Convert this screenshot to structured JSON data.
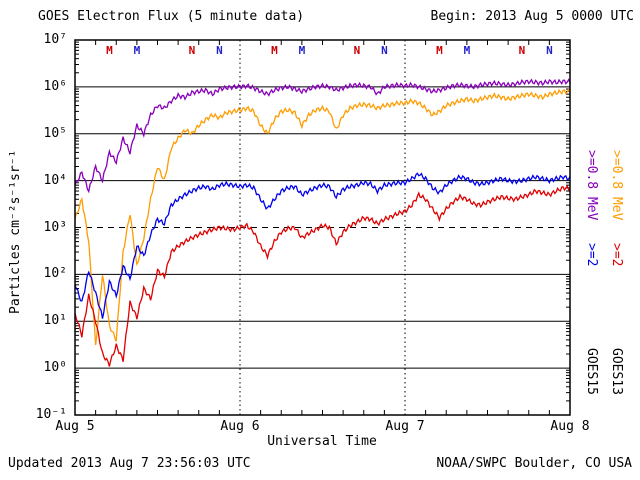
{
  "header": {
    "title": "GOES Electron Flux (5 minute data)",
    "begin_label": "Begin: 2013 Aug 5 0000 UTC"
  },
  "footer": {
    "updated": "Updated 2013 Aug  7 23:56:03 UTC",
    "credit": "NOAA/SWPC Boulder, CO USA"
  },
  "legend": {
    "goes15": {
      "label": "GOES15",
      "e08": {
        "label": ">=0.8 MeV",
        "color": "#8800bb"
      },
      "e2": {
        "label": ">=2",
        "color": "#0000ee"
      }
    },
    "goes13": {
      "label": "GOES13",
      "e08": {
        "label": ">=0.8 MeV",
        "color": "#ff9c00"
      },
      "e2": {
        "label": ">=2",
        "color": "#e00000"
      }
    }
  },
  "chart_data": {
    "type": "line",
    "title": "GOES Electron Flux (5 minute data)",
    "xlabel": "Universal Time",
    "ylabel": "Particles cm⁻²s⁻¹sr⁻¹",
    "x_unit": "hours since 2013 Aug 5 0000 UTC",
    "x_range": [
      0,
      72
    ],
    "x_step_hours": 1,
    "x_tick_labels": [
      {
        "hour": 0,
        "label": "Aug 5"
      },
      {
        "hour": 24,
        "label": "Aug 6"
      },
      {
        "hour": 48,
        "label": "Aug 7"
      },
      {
        "hour": 72,
        "label": "Aug 8"
      }
    ],
    "y_scale": "log",
    "y_exponent_range": [
      -1,
      7
    ],
    "y_tick_labels": [
      {
        "exp": 7,
        "label": "10⁷"
      },
      {
        "exp": 6,
        "label": "10⁶"
      },
      {
        "exp": 5,
        "label": "10⁵"
      },
      {
        "exp": 4,
        "label": "10⁴"
      },
      {
        "exp": 3,
        "label": "10³"
      },
      {
        "exp": 2,
        "label": "10²"
      },
      {
        "exp": 1,
        "label": "10¹"
      },
      {
        "exp": 0,
        "label": "10⁰"
      },
      {
        "exp": -1,
        "label": "10⁻¹"
      }
    ],
    "grid_exponents": [
      0,
      1,
      2,
      4,
      5,
      6
    ],
    "threshold": {
      "value": 1000,
      "style": "dashed"
    },
    "day_boundaries_hours": [
      24,
      48
    ],
    "legend_position": "right-margin",
    "satellite_markers": [
      {
        "hour": 5,
        "label": "M",
        "color": "#cc0000"
      },
      {
        "hour": 9,
        "label": "M",
        "color": "#2222cc"
      },
      {
        "hour": 17,
        "label": "N",
        "color": "#cc0000"
      },
      {
        "hour": 21,
        "label": "N",
        "color": "#2222cc"
      },
      {
        "hour": 29,
        "label": "M",
        "color": "#cc0000"
      },
      {
        "hour": 33,
        "label": "M",
        "color": "#2222cc"
      },
      {
        "hour": 41,
        "label": "N",
        "color": "#cc0000"
      },
      {
        "hour": 45,
        "label": "N",
        "color": "#2222cc"
      },
      {
        "hour": 53,
        "label": "M",
        "color": "#cc0000"
      },
      {
        "hour": 57,
        "label": "M",
        "color": "#2222cc"
      },
      {
        "hour": 65,
        "label": "N",
        "color": "#cc0000"
      },
      {
        "hour": 69,
        "label": "N",
        "color": "#2222cc"
      }
    ],
    "series": [
      {
        "name": "GOES13 >=0.8 MeV",
        "color": "#ff9c00",
        "values": [
          1500,
          4000,
          500,
          3,
          100,
          8,
          4,
          300,
          2000,
          150,
          600,
          4000,
          20000,
          10000,
          50000,
          80000,
          120000,
          100000,
          150000,
          200000,
          250000,
          220000,
          280000,
          300000,
          320000,
          350000,
          300000,
          150000,
          100000,
          200000,
          300000,
          320000,
          280000,
          150000,
          250000,
          320000,
          350000,
          300000,
          120000,
          250000,
          350000,
          400000,
          420000,
          400000,
          350000,
          400000,
          420000,
          450000,
          450000,
          500000,
          450000,
          350000,
          250000,
          300000,
          400000,
          450000,
          500000,
          550000,
          500000,
          550000,
          600000,
          650000,
          600000,
          550000,
          600000,
          650000,
          700000,
          650000,
          600000,
          700000,
          750000,
          800000,
          780000
        ]
      },
      {
        "name": "GOES13 >=2 MeV",
        "color": "#e00000",
        "values": [
          15,
          5,
          35,
          10,
          2,
          1.2,
          3,
          1.5,
          25,
          12,
          50,
          30,
          120,
          90,
          300,
          400,
          500,
          600,
          700,
          800,
          900,
          1000,
          950,
          900,
          1000,
          1100,
          800,
          400,
          250,
          500,
          800,
          950,
          1000,
          600,
          750,
          900,
          1100,
          1000,
          450,
          800,
          1100,
          1300,
          1600,
          1500,
          1200,
          1500,
          1700,
          2000,
          2200,
          3000,
          5000,
          4000,
          2500,
          1600,
          2500,
          3500,
          4500,
          4000,
          3200,
          3000,
          3500,
          4000,
          4500,
          4200,
          4000,
          4500,
          5000,
          6000,
          5500,
          5000,
          6000,
          7000,
          6800
        ]
      },
      {
        "name": "GOES15 >=2 MeV",
        "color": "#0000ee",
        "values": [
          60,
          25,
          120,
          40,
          12,
          70,
          35,
          150,
          80,
          400,
          250,
          700,
          1500,
          1200,
          3000,
          4000,
          5000,
          6000,
          7000,
          7500,
          6500,
          8000,
          8500,
          8000,
          7500,
          8000,
          7000,
          4000,
          2500,
          4000,
          6000,
          7000,
          7500,
          5000,
          6000,
          7000,
          8000,
          7500,
          4500,
          6500,
          7500,
          8000,
          9000,
          8500,
          6000,
          8000,
          8500,
          9000,
          9000,
          11000,
          14000,
          11000,
          7000,
          5500,
          8000,
          10000,
          12000,
          11000,
          9000,
          8500,
          9000,
          10000,
          11000,
          10000,
          9500,
          10000,
          11000,
          12000,
          11000,
          10000,
          11000,
          12000,
          11000
        ]
      },
      {
        "name": "GOES15 >=0.8 MeV",
        "color": "#8800bb",
        "values": [
          8000,
          15000,
          6000,
          20000,
          10000,
          40000,
          25000,
          80000,
          40000,
          150000,
          100000,
          250000,
          400000,
          350000,
          500000,
          650000,
          600000,
          750000,
          800000,
          850000,
          700000,
          900000,
          950000,
          1000000,
          1000000,
          1050000,
          950000,
          800000,
          700000,
          850000,
          950000,
          1000000,
          900000,
          800000,
          900000,
          1000000,
          1050000,
          1000000,
          850000,
          950000,
          1050000,
          1100000,
          1050000,
          1000000,
          700000,
          1000000,
          1050000,
          1100000,
          1050000,
          1100000,
          1000000,
          900000,
          800000,
          850000,
          950000,
          1050000,
          1100000,
          1050000,
          1000000,
          1100000,
          1150000,
          1200000,
          1150000,
          1100000,
          1150000,
          1250000,
          1300000,
          1250000,
          1200000,
          1300000,
          1250000,
          1300000,
          1280000
        ]
      }
    ]
  }
}
